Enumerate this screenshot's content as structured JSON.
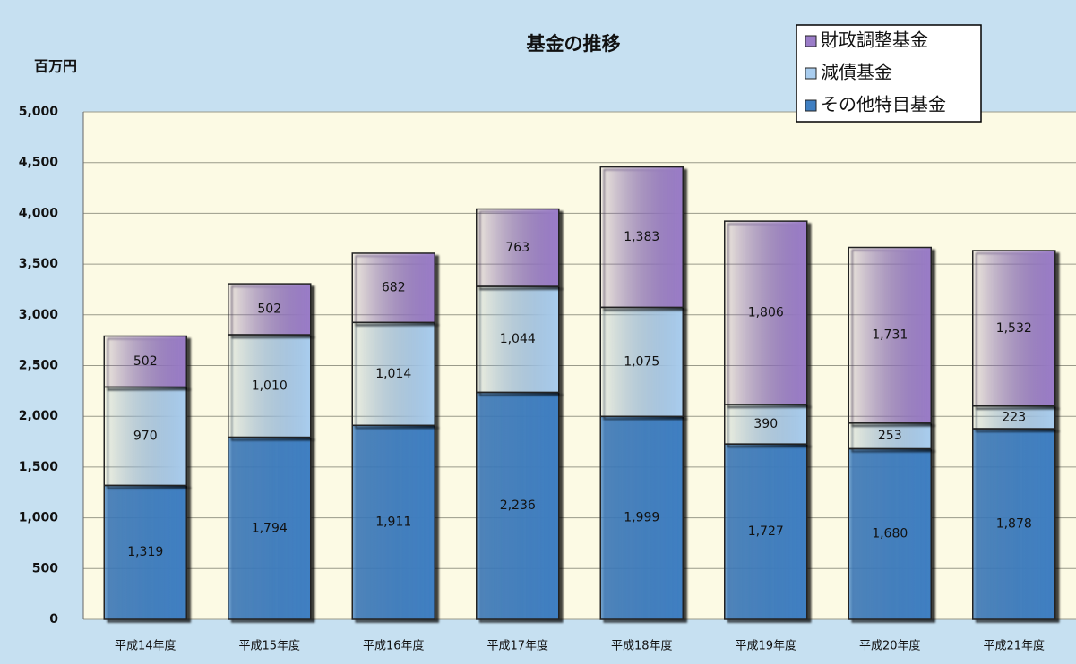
{
  "chart_data": {
    "type": "stacked_bar",
    "title": "基金の推移",
    "y_label": "百万円",
    "categories": [
      "平成14年度",
      "平成15年度",
      "平成16年度",
      "平成17年度",
      "平成18年度",
      "平成19年度",
      "平成20年度",
      "平成21年度"
    ],
    "series": [
      {
        "name": "その他特目基金",
        "color": "#3f7fc2",
        "values": [
          1319,
          1794,
          1911,
          2236,
          1999,
          1727,
          1680,
          1878
        ],
        "value_labels": [
          "1,319",
          "1,794",
          "1,911",
          "2,236",
          "1,999",
          "1,727",
          "1,680",
          "1,878"
        ]
      },
      {
        "name": "減債基金",
        "color": "#a9cdef",
        "values": [
          970,
          1010,
          1014,
          1044,
          1075,
          390,
          253,
          223
        ],
        "value_labels": [
          "970",
          "1,010",
          "1,014",
          "1,044",
          "1,075",
          "390",
          "253",
          "223"
        ]
      },
      {
        "name": "財政調整基金",
        "color": "#9a7cc8",
        "values": [
          502,
          502,
          682,
          763,
          1383,
          1806,
          1731,
          1532
        ],
        "value_labels": [
          "502",
          "502",
          "682",
          "763",
          "1,383",
          "1,806",
          "1,731",
          "1,532"
        ]
      }
    ],
    "ylim": [
      0,
      5000
    ],
    "yticks": [
      0,
      500,
      {
        "value": 1000,
        "label": "1,000"
      },
      {
        "value": 1500,
        "label": "1,500"
      },
      {
        "value": 2000,
        "label": "2,000"
      },
      {
        "value": 2500,
        "label": "2,500"
      },
      {
        "value": 3000,
        "label": "3,000"
      },
      {
        "value": 3500,
        "label": "3,500"
      },
      {
        "value": 4000,
        "label": "4,000"
      },
      {
        "value": 4500,
        "label": "4,500"
      },
      {
        "value": 5000,
        "label": "5,000"
      }
    ],
    "grid": true,
    "legend": "top-right",
    "legend_order": "reversed"
  }
}
